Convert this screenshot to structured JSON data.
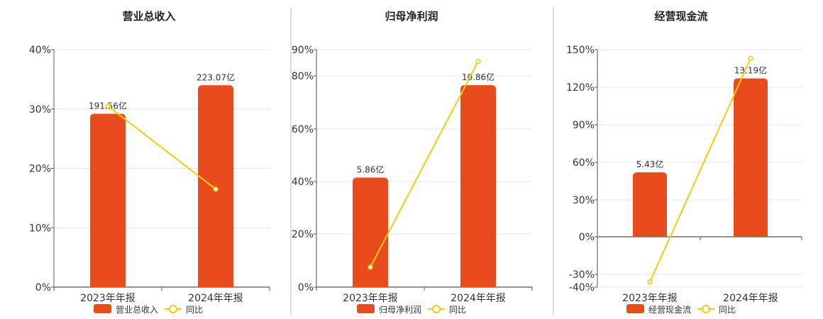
{
  "colors": {
    "bar": "#e84c1c",
    "line": "#f2cc0f",
    "grid": "#e4e4e4",
    "axis": "#555555",
    "separator": "#bbbbbb"
  },
  "chart_data": [
    {
      "type": "bar",
      "title": "营业总收入",
      "categories": [
        "2023年年报",
        "2024年年报"
      ],
      "series": [
        {
          "name": "营业总收入",
          "type": "bar",
          "values": [
            191.56,
            223.07
          ],
          "value_labels": [
            "191.56亿",
            "223.07亿"
          ],
          "axis_percent_equivalent": [
            29.2,
            34.0
          ]
        },
        {
          "name": "同比",
          "type": "line",
          "values": [
            30.5,
            16.5
          ],
          "unit": "%"
        }
      ],
      "yaxis": {
        "ticks": [
          "0%",
          "10%",
          "20%",
          "30%",
          "40%"
        ],
        "ylim": [
          0,
          40
        ]
      },
      "legend": "bottom",
      "grid": true
    },
    {
      "type": "bar",
      "title": "归母净利润",
      "categories": [
        "2023年年报",
        "2024年年报"
      ],
      "series": [
        {
          "name": "归母净利润",
          "type": "bar",
          "values": [
            5.86,
            10.86
          ],
          "value_labels": [
            "5.86亿",
            "10.86亿"
          ],
          "axis_percent_equivalent": [
            41.5,
            76.5
          ]
        },
        {
          "name": "同比",
          "type": "line",
          "values": [
            7.5,
            85.5
          ],
          "unit": "%"
        }
      ],
      "yaxis": {
        "ticks": [
          "0%",
          "20%",
          "40%",
          "60%",
          "80%",
          "90%"
        ],
        "ylim": [
          0,
          90
        ]
      },
      "legend": "bottom",
      "grid": true
    },
    {
      "type": "bar",
      "title": "经营现金流",
      "categories": [
        "2023年年报",
        "2024年年报"
      ],
      "series": [
        {
          "name": "经营现金流",
          "type": "bar",
          "values": [
            5.43,
            13.19
          ],
          "value_labels": [
            "5.43亿",
            "13.19亿"
          ],
          "axis_percent_equivalent": [
            52,
            127
          ]
        },
        {
          "name": "同比",
          "type": "line",
          "values": [
            -36,
            143
          ],
          "unit": "%"
        }
      ],
      "yaxis": {
        "ticks": [
          "-40%",
          "-30%",
          "0%",
          "30%",
          "60%",
          "90%",
          "120%",
          "150%"
        ],
        "ylim": [
          -40,
          150
        ]
      },
      "legend": "bottom",
      "grid": true
    }
  ]
}
